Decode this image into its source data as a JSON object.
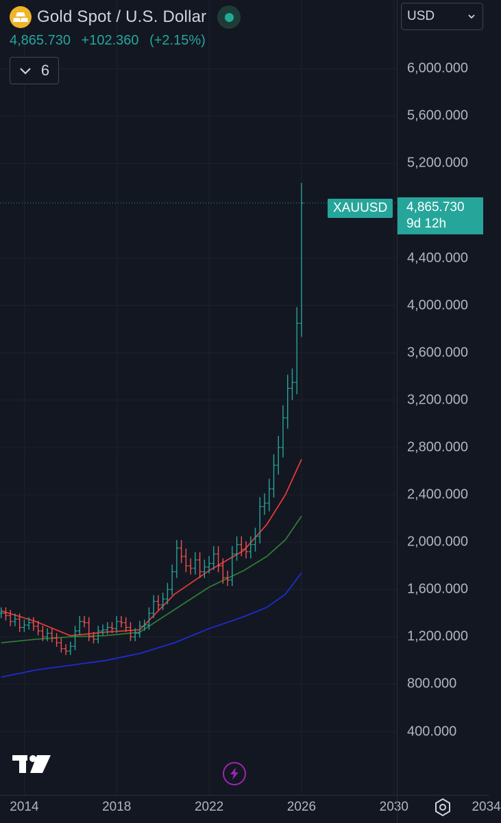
{
  "symbol": {
    "title": "Gold Spot / U.S. Dollar",
    "ticker": "XAUUSD",
    "last_price": "4,865.730",
    "change": "+102.360",
    "change_pct": "(+2.15%)",
    "countdown": "9d 12h",
    "market_status": "open"
  },
  "indicators_toggle": {
    "count": "6"
  },
  "currency_select": {
    "value": "USD"
  },
  "icons": {
    "gold": "gold-bars-icon",
    "status": "market-open-dot-icon",
    "collapse": "chevron-down-icon",
    "currency_dropdown": "chevron-down-icon",
    "logo": "tradingview-logo",
    "flash": "lightning-icon",
    "settings": "settings-icon"
  },
  "colors": {
    "background": "#131722",
    "up": "#26a69a",
    "down": "#ef5350",
    "ma_red": "#e53935",
    "ma_green": "#2e7d32",
    "ma_blue": "#1e2ccf",
    "flash": "#9c27b0"
  },
  "chart_data": {
    "type": "bar",
    "price_ticks": [
      "6,000.000",
      "5,600.000",
      "5,200.000",
      "4,400.000",
      "4,000.000",
      "3,600.000",
      "3,200.000",
      "2,800.000",
      "2,400.000",
      "2,000.000",
      "1,600.000",
      "1,200.000",
      "800.000",
      "400.000"
    ],
    "tick_values": [
      6000,
      5600,
      5200,
      4400,
      4000,
      3600,
      3200,
      2800,
      2400,
      2000,
      1600,
      1200,
      800,
      400
    ],
    "year_ticks": [
      "2014",
      "2018",
      "2022",
      "2026",
      "2030",
      "2034"
    ],
    "year_values": [
      2014,
      2018,
      2022,
      2026,
      2030,
      2034
    ],
    "ylim": [
      -135,
      6580
    ],
    "xlim": [
      2012.95,
      2034.1
    ],
    "last_value": 4865.73,
    "series": [
      {
        "name": "",
        "values_desc": "monthly close, approx",
        "x": [
          2013.0,
          2013.2,
          2013.4,
          2013.6,
          2013.8,
          2014.0,
          2014.2,
          2014.4,
          2014.6,
          2014.8,
          2015.0,
          2015.2,
          2015.4,
          2015.6,
          2015.8,
          2016.0,
          2016.2,
          2016.4,
          2016.6,
          2016.8,
          2017.0,
          2017.2,
          2017.4,
          2017.6,
          2017.8,
          2018.0,
          2018.2,
          2018.4,
          2018.6,
          2018.8,
          2019.0,
          2019.2,
          2019.4,
          2019.6,
          2019.8,
          2020.0,
          2020.2,
          2020.4,
          2020.6,
          2020.8,
          2021.0,
          2021.2,
          2021.4,
          2021.6,
          2021.8,
          2022.0,
          2022.2,
          2022.4,
          2022.6,
          2022.8,
          2023.0,
          2023.2,
          2023.4,
          2023.6,
          2023.8,
          2024.0,
          2024.2,
          2024.4,
          2024.6,
          2024.8,
          2025.0,
          2025.2,
          2025.4,
          2025.6,
          2025.8,
          2026.0
        ],
        "values": [
          1400,
          1380,
          1330,
          1350,
          1280,
          1300,
          1320,
          1290,
          1250,
          1200,
          1230,
          1190,
          1150,
          1100,
          1080,
          1120,
          1250,
          1330,
          1320,
          1200,
          1180,
          1250,
          1260,
          1280,
          1270,
          1330,
          1320,
          1280,
          1200,
          1230,
          1290,
          1300,
          1400,
          1500,
          1470,
          1520,
          1600,
          1750,
          1950,
          1880,
          1800,
          1780,
          1850,
          1750,
          1790,
          1820,
          1900,
          1800,
          1700,
          1680,
          1900,
          1980,
          1940,
          1920,
          1980,
          2050,
          2300,
          2330,
          2450,
          2650,
          2800,
          3050,
          3300,
          3350,
          3850,
          4865
        ]
      },
      {
        "name": "",
        "color": "red",
        "x": [
          2013.0,
          2014.5,
          2016.0,
          2017.5,
          2019.0,
          2020.5,
          2022.0,
          2023.5,
          2024.5,
          2025.3,
          2026.0
        ],
        "values": [
          1420,
          1330,
          1210,
          1240,
          1260,
          1560,
          1760,
          1930,
          2150,
          2400,
          2700
        ]
      },
      {
        "name": "",
        "color": "green",
        "x": [
          2013.0,
          2014.5,
          2016.0,
          2017.5,
          2019.0,
          2020.5,
          2022.0,
          2023.5,
          2024.5,
          2025.3,
          2026.0
        ],
        "values": [
          1150,
          1180,
          1200,
          1210,
          1240,
          1430,
          1620,
          1760,
          1880,
          2020,
          2220
        ]
      },
      {
        "name": "",
        "color": "blue",
        "x": [
          2013.0,
          2014.5,
          2016.0,
          2017.5,
          2019.0,
          2020.5,
          2022.0,
          2023.5,
          2024.5,
          2025.3,
          2026.0
        ],
        "values": [
          860,
          920,
          960,
          1000,
          1060,
          1150,
          1270,
          1370,
          1450,
          1560,
          1740
        ]
      }
    ]
  }
}
